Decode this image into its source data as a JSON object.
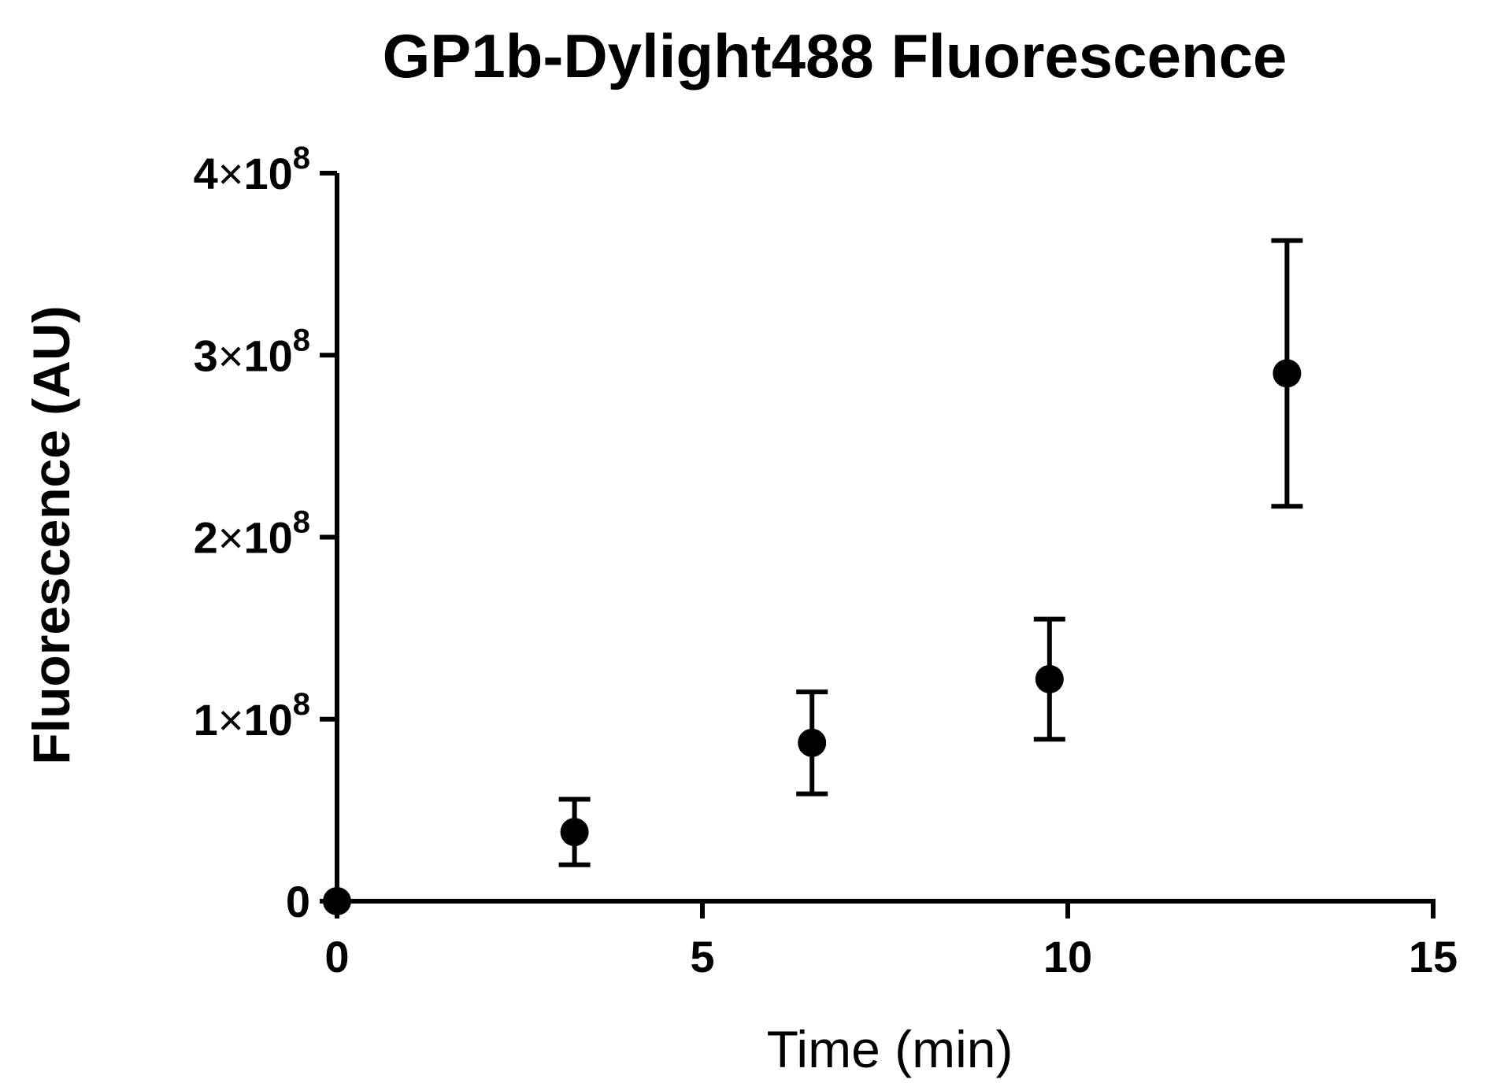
{
  "chart_data": {
    "type": "scatter",
    "title": "GP1b-Dylight488 Fluorescence",
    "xlabel": "Time (min)",
    "ylabel": "Fluorescence (AU)",
    "xlim": [
      0,
      15
    ],
    "ylim": [
      0,
      400000000
    ],
    "x_ticks": [
      {
        "value": 0,
        "label": "0"
      },
      {
        "value": 5,
        "label": "5"
      },
      {
        "value": 10,
        "label": "10"
      },
      {
        "value": 15,
        "label": "15"
      }
    ],
    "y_ticks": [
      {
        "value": 0,
        "label": "0"
      },
      {
        "value": 100000000,
        "mantissa": "1",
        "times": "×",
        "base": "10",
        "exp": "8"
      },
      {
        "value": 200000000,
        "mantissa": "2",
        "times": "×",
        "base": "10",
        "exp": "8"
      },
      {
        "value": 300000000,
        "mantissa": "3",
        "times": "×",
        "base": "10",
        "exp": "8"
      },
      {
        "value": 400000000,
        "mantissa": "4",
        "times": "×",
        "base": "10",
        "exp": "8"
      }
    ],
    "grid": false,
    "legend": "none",
    "marker_color": "#000000",
    "points": [
      {
        "x": 0,
        "y": 0,
        "err_low": 0,
        "err_high": 0
      },
      {
        "x": 3.25,
        "y": 38000000,
        "err_low": 20000000,
        "err_high": 56000000
      },
      {
        "x": 6.5,
        "y": 87000000,
        "err_low": 59000000,
        "err_high": 115000000
      },
      {
        "x": 9.75,
        "y": 122000000,
        "err_low": 89000000,
        "err_high": 155000000
      },
      {
        "x": 13,
        "y": 290000000,
        "err_low": 217000000,
        "err_high": 363000000
      }
    ]
  }
}
